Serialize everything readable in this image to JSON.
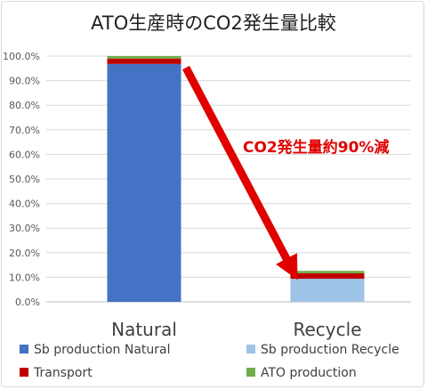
{
  "chart_data": {
    "type": "bar",
    "stacked": true,
    "title": "ATO生産時のCO2発生量比較",
    "categories": [
      "Natural",
      "Recycle"
    ],
    "series": [
      {
        "name": "Sb production Natural",
        "color": "#4472c4",
        "values": [
          96.8,
          0
        ]
      },
      {
        "name": "Sb production Recycle",
        "color": "#9dc3e6",
        "values": [
          0,
          9.4
        ]
      },
      {
        "name": "Transport",
        "color": "#c00000",
        "values": [
          2.2,
          2.2
        ]
      },
      {
        "name": "ATO production",
        "color": "#70ad47",
        "values": [
          1.0,
          1.0
        ]
      }
    ],
    "ylim": [
      0,
      100
    ],
    "yticks": [
      "0.0%",
      "10.0%",
      "20.0%",
      "30.0%",
      "40.0%",
      "50.0%",
      "60.0%",
      "70.0%",
      "80.0%",
      "90.0%",
      "100.0%"
    ],
    "grid": true,
    "legend_position": "bottom",
    "annotation": {
      "text": "CO2発生量約90%減",
      "color": "#e00000"
    }
  }
}
